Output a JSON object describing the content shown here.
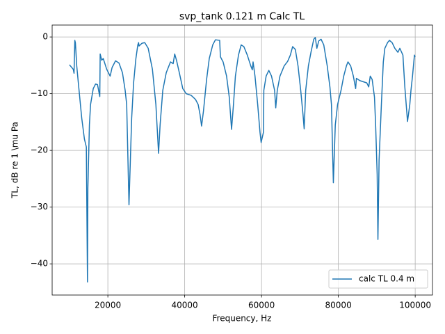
{
  "chart_data": {
    "type": "line",
    "title": "svp_tank 0.121 m Calc TL",
    "x_label": "Frequency, Hz",
    "y_label": "TL, dB re 1 \\mu Pa",
    "x": [
      10000,
      11000,
      11200,
      11400,
      11550,
      11900,
      12500,
      13200,
      13900,
      14400,
      14700,
      14800,
      15200,
      15500,
      16200,
      16800,
      17300,
      17900,
      18000,
      18400,
      18800,
      19700,
      20600,
      21100,
      22000,
      22900,
      23800,
      24500,
      24900,
      25500,
      25800,
      26200,
      26700,
      27300,
      27800,
      28000,
      28100,
      28900,
      29600,
      30500,
      31600,
      32500,
      33200,
      33600,
      34300,
      35200,
      36300,
      37000,
      37400,
      37900,
      38600,
      39500,
      40400,
      41700,
      42800,
      43500,
      44000,
      44400,
      44900,
      45700,
      46400,
      47300,
      48000,
      49100,
      49300,
      50000,
      50900,
      51600,
      52200,
      52700,
      53200,
      54000,
      54700,
      55400,
      56300,
      57200,
      57600,
      57800,
      58300,
      59000,
      59600,
      59900,
      60500,
      60600,
      61200,
      61900,
      62600,
      63400,
      63700,
      64100,
      64800,
      65900,
      66800,
      67500,
      68100,
      68800,
      69500,
      70200,
      70800,
      71100,
      71500,
      72200,
      72900,
      73600,
      74000,
      74400,
      74900,
      75500,
      76200,
      77100,
      77800,
      78200,
      78700,
      79200,
      79800,
      80700,
      81400,
      82100,
      82500,
      83200,
      83900,
      84500,
      84700,
      85600,
      86500,
      87400,
      87900,
      88300,
      88800,
      89400,
      89700,
      90100,
      90300,
      90600,
      91200,
      91700,
      92100,
      92800,
      93300,
      94000,
      94700,
      95500,
      96000,
      96800,
      97300,
      98000,
      98600,
      98900,
      99300,
      99800,
      100000
    ],
    "series": [
      {
        "name": "calc TL 0.4 m",
        "color": "#1f77b4",
        "values": [
          -4.9,
          -5.7,
          -6.4,
          -0.6,
          -1.0,
          -5.1,
          -9.4,
          -14.3,
          -18,
          -19.4,
          -43.2,
          -26.7,
          -15.5,
          -11.9,
          -9.1,
          -8.3,
          -8.4,
          -10.5,
          -3.0,
          -4.1,
          -3.8,
          -5.7,
          -6.9,
          -5.4,
          -4.2,
          -4.6,
          -6.3,
          -9.4,
          -11.9,
          -29.6,
          -23,
          -14.3,
          -8.1,
          -3.8,
          -1.4,
          -1.0,
          -1.6,
          -1.1,
          -1.0,
          -2,
          -5.7,
          -11.9,
          -20.5,
          -15.5,
          -9.4,
          -6.3,
          -4.4,
          -4.7,
          -3.0,
          -4.2,
          -6.3,
          -9.1,
          -10,
          -10.3,
          -11,
          -11.9,
          -13.7,
          -15.7,
          -13,
          -7.5,
          -3.8,
          -1.4,
          -0.5,
          -0.6,
          -3.5,
          -4.4,
          -6.9,
          -10.6,
          -16.3,
          -11.9,
          -6.9,
          -3.2,
          -1.4,
          -1.7,
          -3.2,
          -5.1,
          -5.8,
          -4.4,
          -6.9,
          -11.9,
          -16.8,
          -18.6,
          -16.8,
          -9.4,
          -6.9,
          -5.9,
          -6.9,
          -9.4,
          -12.5,
          -9.4,
          -6.9,
          -5.1,
          -4.3,
          -3.2,
          -1.7,
          -2.2,
          -5.1,
          -9.4,
          -13.7,
          -16.2,
          -9.4,
          -5.1,
          -2.6,
          -0.4,
          -0.1,
          -2,
          -0.7,
          -0.4,
          -1.4,
          -5.1,
          -8.8,
          -11.9,
          -25.7,
          -15.5,
          -11.9,
          -9.4,
          -6.9,
          -5.1,
          -4.4,
          -5.1,
          -6.9,
          -9.1,
          -7.3,
          -7.7,
          -7.9,
          -8.1,
          -8.8,
          -6.9,
          -7.5,
          -10.6,
          -15.5,
          -24.2,
          -35.7,
          -21.7,
          -11.9,
          -4.4,
          -2,
          -1.0,
          -0.6,
          -1.0,
          -2,
          -2.7,
          -2,
          -3.2,
          -8.8,
          -14.9,
          -11.9,
          -9.4,
          -6.9,
          -3.2,
          -3.5
        ]
      }
    ],
    "xlim": [
      5500,
      104500
    ],
    "ylim": [
      -45.5,
      2.1
    ],
    "xticks": [
      20000,
      40000,
      60000,
      80000,
      100000
    ],
    "yticks": [
      {
        "value": -40,
        "label": "−40"
      },
      {
        "value": -30,
        "label": "−30"
      },
      {
        "value": -20,
        "label": "−20"
      },
      {
        "value": -10,
        "label": "−10"
      },
      0
    ],
    "grid": true,
    "legend": "lower right"
  }
}
